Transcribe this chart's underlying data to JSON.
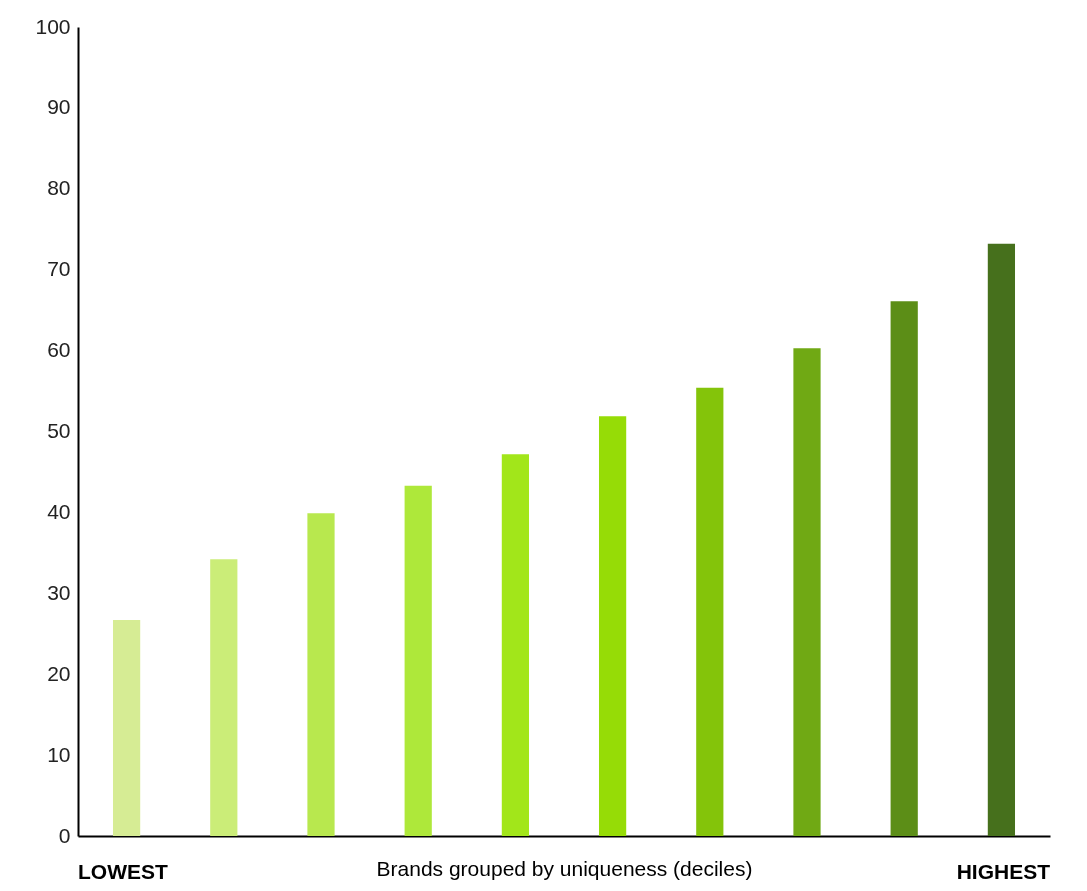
{
  "chart_data": {
    "type": "bar",
    "xlabel": "Brands grouped by uniqueness (deciles)",
    "categories": [
      null,
      null,
      null,
      null,
      null,
      null,
      null,
      null,
      null,
      null
    ],
    "values": [
      26.7,
      34.2,
      39.9,
      43.3,
      47.2,
      51.9,
      55.4,
      60.3,
      66.1,
      73.2
    ],
    "colors": [
      "#d6ec94",
      "#cbed78",
      "#b8e84e",
      "#aee83a",
      "#a2e61a",
      "#96dc06",
      "#84c40a",
      "#70a914",
      "#5c8e17",
      "#46701c"
    ],
    "ylim": [
      0,
      100
    ],
    "yticks": [
      0,
      10,
      20,
      30,
      40,
      50,
      60,
      70,
      80,
      90,
      100
    ],
    "grid": false,
    "annotations": [
      "LOWEST",
      "HIGHEST"
    ]
  }
}
